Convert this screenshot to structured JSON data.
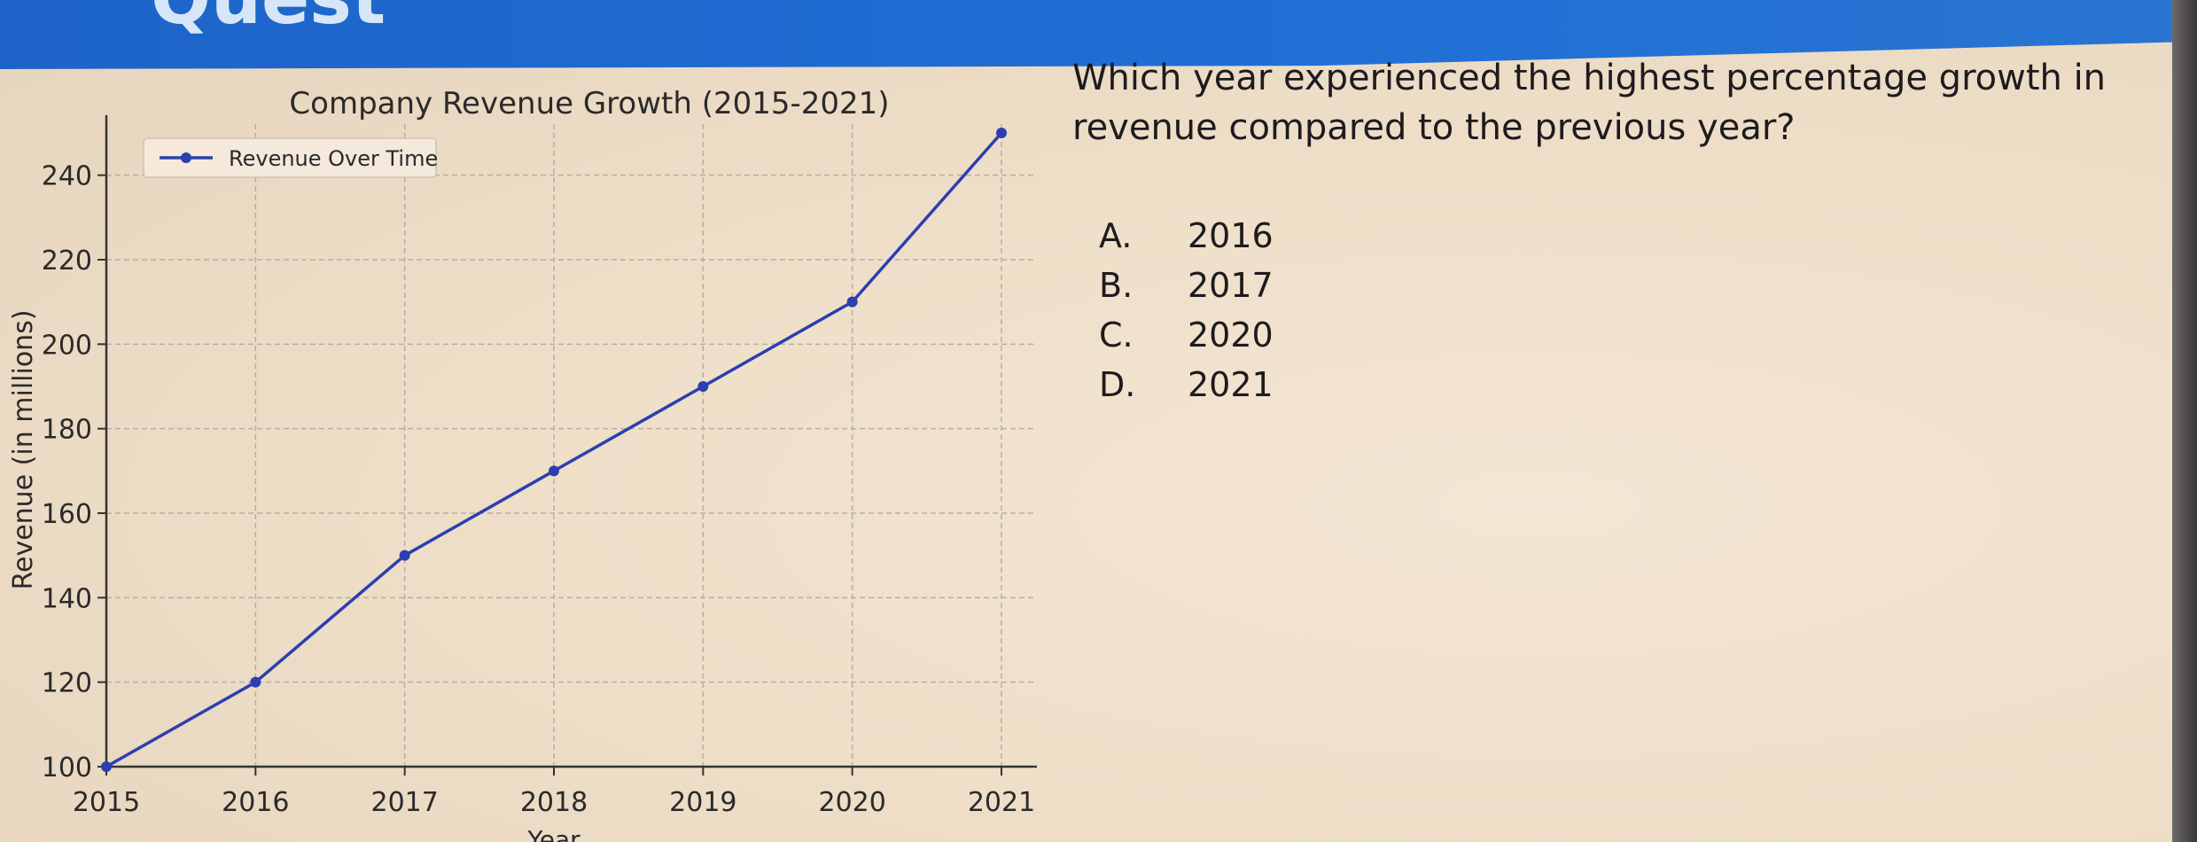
{
  "header": {
    "title": "Quest"
  },
  "question": {
    "text": "Which year experienced the highest percentage growth in revenue compared to the previous year?",
    "options": [
      {
        "letter": "A.",
        "label": "2016"
      },
      {
        "letter": "B.",
        "label": "2017"
      },
      {
        "letter": "C.",
        "label": "2020"
      },
      {
        "letter": "D.",
        "label": "2021"
      }
    ]
  },
  "chart_data": {
    "type": "line",
    "title": "Company Revenue Growth (2015-2021)",
    "xlabel": "Year",
    "ylabel": "Revenue (in millions)",
    "x": [
      "2015",
      "2016",
      "2017",
      "2018",
      "2019",
      "2020",
      "2021"
    ],
    "series": [
      {
        "name": "Revenue Over Time",
        "values": [
          100,
          120,
          150,
          170,
          190,
          210,
          250
        ],
        "color": "#2b3fae"
      }
    ],
    "yticks": [
      100,
      120,
      140,
      160,
      180,
      200,
      220,
      240
    ],
    "ylim": [
      100,
      250
    ],
    "grid": true,
    "legend": "top-left"
  }
}
